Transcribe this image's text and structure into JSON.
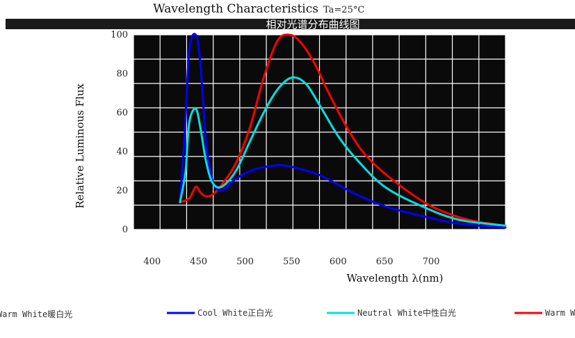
{
  "chart_data": {
    "type": "line",
    "title": "Wavelength Characteristics",
    "condition": "Ta=25°C",
    "subtitle": "相对光谱分布曲线图",
    "xlabel": "Wavelength λ(nm)",
    "ylabel": "Relative Luminous Flux",
    "xlim": [
      380,
      780
    ],
    "ylim": [
      0,
      100
    ],
    "x_ticks": [
      "400",
      "450",
      "500",
      "550",
      "600",
      "650",
      "700"
    ],
    "y_ticks": [
      "0",
      "20",
      "40",
      "60",
      "80",
      "100"
    ],
    "grid": true,
    "legend_position": "bottom",
    "series": [
      {
        "name": "Warm White暖白光",
        "color": "#ff0000",
        "x": [
          430,
          440,
          447,
          452,
          458,
          465,
          475,
          490,
          505,
          520,
          535,
          548,
          560,
          575,
          590,
          610,
          630,
          660,
          700,
          740,
          780
        ],
        "y": [
          14,
          16,
          22,
          19,
          17,
          18,
          23,
          34,
          52,
          78,
          97,
          100,
          96,
          85,
          70,
          52,
          38,
          25,
          12,
          5,
          2
        ]
      },
      {
        "name": "Cool White正白光",
        "color": "#0000ff",
        "x": [
          430,
          435,
          440,
          447,
          452,
          458,
          465,
          475,
          490,
          505,
          520,
          540,
          560,
          580,
          600,
          620,
          650,
          690,
          730,
          780
        ],
        "y": [
          15,
          48,
          92,
          100,
          85,
          45,
          25,
          20,
          26,
          30,
          32,
          33,
          31,
          28,
          23,
          18,
          12,
          7,
          3,
          1
        ]
      },
      {
        "name": "Neutral White中性白光",
        "color": "#00e0e0",
        "x": [
          430,
          436,
          440,
          447,
          452,
          458,
          465,
          475,
          490,
          505,
          520,
          535,
          550,
          565,
          580,
          600,
          620,
          650,
          690,
          730,
          780
        ],
        "y": [
          14,
          30,
          55,
          62,
          52,
          35,
          24,
          22,
          30,
          45,
          60,
          72,
          78,
          75,
          64,
          48,
          36,
          22,
          12,
          5,
          2
        ]
      }
    ]
  }
}
